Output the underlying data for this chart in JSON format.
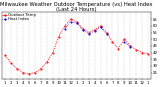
{
  "title": "Milwaukee Weather Outdoor Temperature (vs) Heat Index (Last 24 Hours)",
  "x_labels": [
    "1",
    "2",
    "3",
    "4",
    "5",
    "6",
    "7",
    "8",
    "9",
    "10",
    "11",
    "12",
    "1",
    "2",
    "3",
    "4",
    "5",
    "6",
    "7",
    "8",
    "9",
    "10",
    "11",
    "12",
    "1"
  ],
  "temp_data": [
    38,
    32,
    28,
    25,
    24,
    25,
    28,
    33,
    40,
    52,
    60,
    65,
    63,
    58,
    55,
    57,
    60,
    55,
    48,
    43,
    50,
    45,
    42,
    40,
    39
  ],
  "heat_data": [
    null,
    null,
    null,
    null,
    null,
    null,
    null,
    null,
    null,
    null,
    58,
    63,
    62,
    57,
    54,
    56,
    59,
    54,
    null,
    null,
    48,
    44,
    null,
    null,
    null
  ],
  "temp_color": "#ff0000",
  "heat_color": "#0000dd",
  "background_color": "#ffffff",
  "grid_color": "#888888",
  "ylim": [
    20,
    70
  ],
  "yticks": [
    25,
    30,
    35,
    40,
    45,
    50,
    55,
    60,
    65
  ],
  "ytick_labels": [
    "25",
    "30",
    "35",
    "40",
    "45",
    "50",
    "55",
    "60",
    "65"
  ],
  "title_fontsize": 3.8,
  "tick_fontsize": 2.8,
  "legend_fontsize": 2.8,
  "legend_labels": [
    "Outdoor Temp",
    "Heat Index"
  ],
  "num_points": 25
}
